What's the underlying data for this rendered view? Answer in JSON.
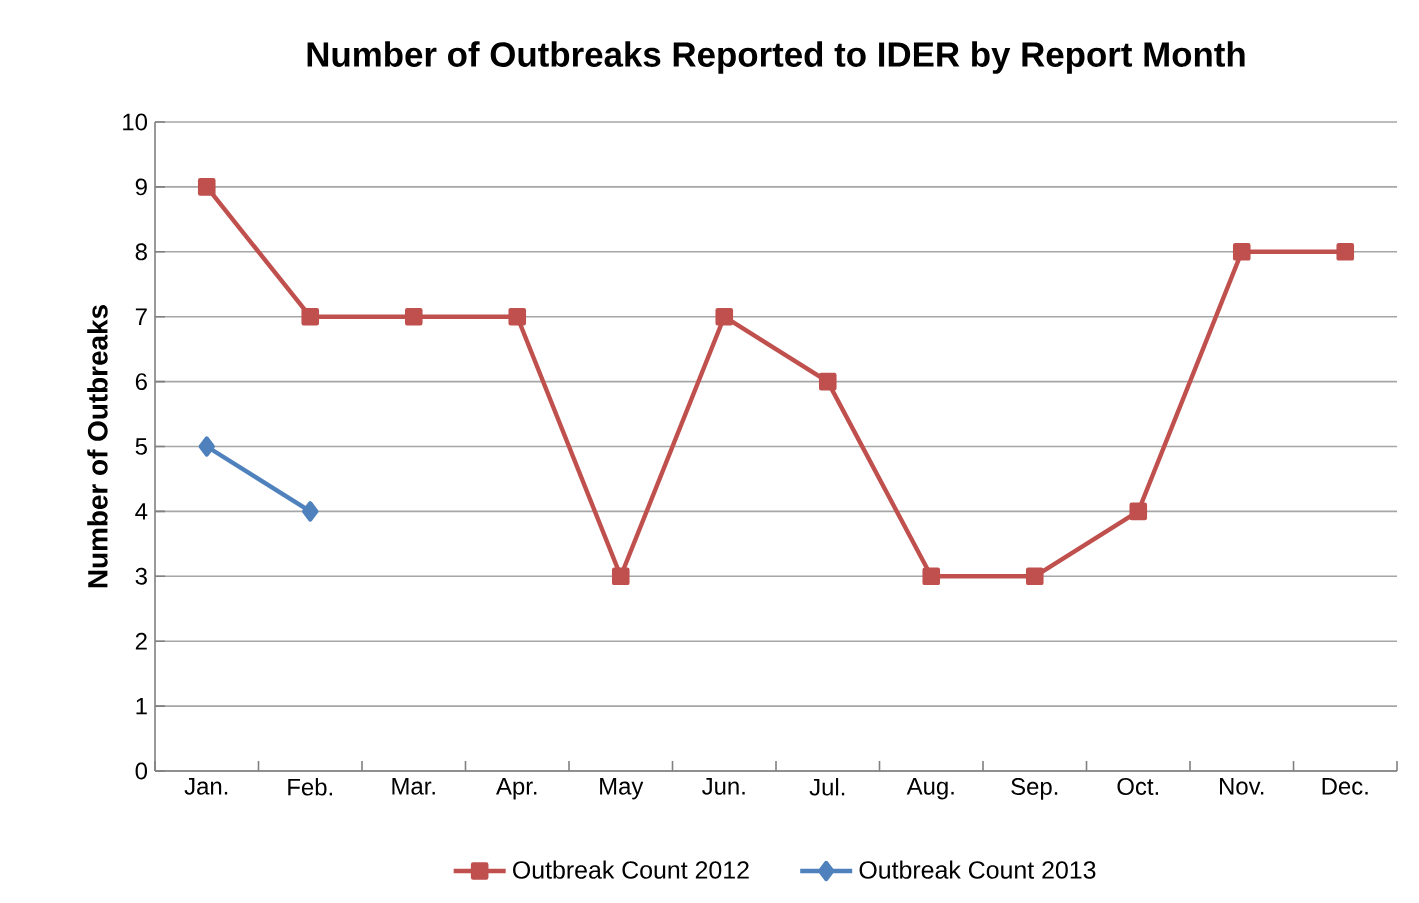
{
  "chart_data": {
    "type": "line",
    "title": "Number of Outbreaks Reported to IDER by Report Month",
    "ylabel": "Number of Outbreaks",
    "categories": [
      "Jan.",
      "Feb.",
      "Mar.",
      "Apr.",
      "May",
      "Jun.",
      "Jul.",
      "Aug.",
      "Sep.",
      "Oct.",
      "Nov.",
      "Dec."
    ],
    "series": [
      {
        "name": "Outbreak Count 2012",
        "color": "#c0504d",
        "marker": "square",
        "values": [
          9,
          7,
          7,
          7,
          3,
          7,
          6,
          3,
          3,
          4,
          8,
          8
        ]
      },
      {
        "name": "Outbreak Count 2013",
        "color": "#4f81bd",
        "marker": "diamond",
        "values": [
          5,
          4,
          null,
          null,
          null,
          null,
          null,
          null,
          null,
          null,
          null,
          null
        ]
      }
    ],
    "ylim": [
      0,
      10
    ],
    "yticks": [
      0,
      1,
      2,
      3,
      4,
      5,
      6,
      7,
      8,
      9,
      10
    ],
    "grid": "y",
    "legend": "bottom",
    "line_style": "solid"
  }
}
